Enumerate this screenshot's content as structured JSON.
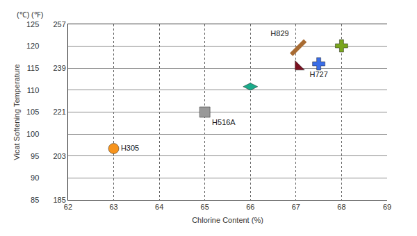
{
  "chart_data": {
    "type": "scatter",
    "xlabel": "Chlorine Content (%)",
    "ylabel": "Vicat Softening Temperature",
    "y_unit": "(℃)",
    "y2_unit": "(℉)",
    "xlim": [
      62,
      69
    ],
    "xticks": [
      62,
      63,
      64,
      65,
      66,
      67,
      68,
      69
    ],
    "ylim": [
      85,
      125
    ],
    "yticks": [
      85,
      90,
      95,
      100,
      105,
      110,
      115,
      120,
      125
    ],
    "y2lim": [
      185,
      257
    ],
    "y2ticks": [
      185,
      203,
      221,
      239,
      257
    ],
    "grid": true,
    "series": [
      {
        "name": "H305",
        "color": "#f7941d",
        "marker": "circle",
        "x": [
          63.0
        ],
        "values": [
          96.7
        ]
      },
      {
        "name": "H516A",
        "color": "#999999",
        "marker": "square",
        "x": [
          65.0
        ],
        "values": [
          105.0
        ]
      },
      {
        "color": "#1aab8a",
        "marker": "block",
        "x": [
          66.0
        ],
        "values": [
          110.8
        ]
      },
      {
        "name": "H829",
        "color": "#a86b32",
        "marker": "rod",
        "x": [
          67.05
        ],
        "values": [
          119.7
        ]
      },
      {
        "color": "#7a1020",
        "marker": "angle",
        "x": [
          67.05
        ],
        "values": [
          115.3
        ]
      },
      {
        "name": "H727",
        "color": "#3b6ee8",
        "marker": "cross",
        "x": [
          67.5
        ],
        "values": [
          116.0
        ]
      },
      {
        "color": "#7aa61e",
        "marker": "cross",
        "x": [
          68.0
        ],
        "values": [
          120.1
        ]
      }
    ]
  }
}
